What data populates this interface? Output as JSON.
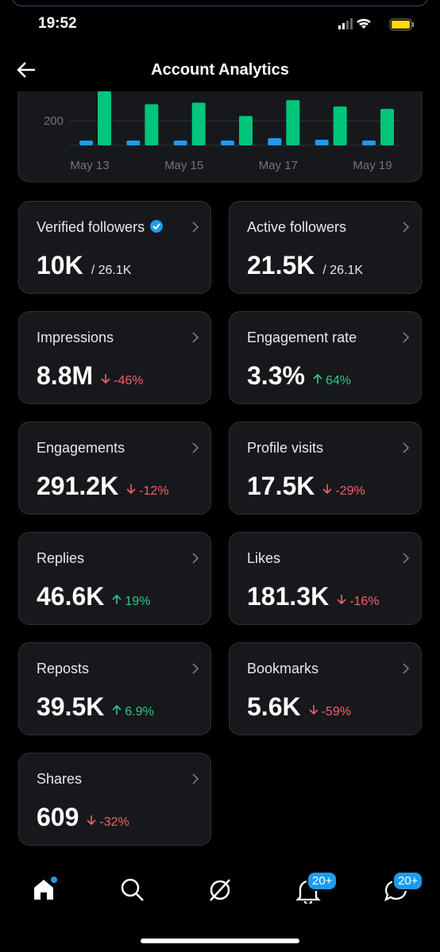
{
  "status_bar": {
    "time": "19:52"
  },
  "header": {
    "title": "Account Analytics"
  },
  "chart_data": {
    "type": "bar",
    "categories": [
      "May 13",
      null,
      "May 15",
      null,
      "May 17",
      null,
      "May 19"
    ],
    "series": [
      {
        "color": "#1d9bf0",
        "values": [
          39,
          39,
          39,
          39,
          58,
          45,
          39
        ]
      },
      {
        "color": "#00c57a",
        "values": [
          440,
          335,
          348,
          239,
          368,
          316,
          297
        ]
      }
    ],
    "ylim": [
      0,
      440
    ],
    "yticks": [
      200
    ],
    "grid": true
  },
  "metrics": [
    {
      "label": "Verified followers",
      "value": "10K",
      "total": "/ 26.1K",
      "verified": true
    },
    {
      "label": "Active followers",
      "value": "21.5K",
      "total": "/ 26.1K"
    },
    {
      "label": "Impressions",
      "value": "8.8M",
      "change": "-46%",
      "trend": "down"
    },
    {
      "label": "Engagement rate",
      "value": "3.3%",
      "change": "64%",
      "trend": "up"
    },
    {
      "label": "Engagements",
      "value": "291.2K",
      "change": "-12%",
      "trend": "down"
    },
    {
      "label": "Profile visits",
      "value": "17.5K",
      "change": "-29%",
      "trend": "down"
    },
    {
      "label": "Replies",
      "value": "46.6K",
      "change": "19%",
      "trend": "up"
    },
    {
      "label": "Likes",
      "value": "181.3K",
      "change": "-16%",
      "trend": "down"
    },
    {
      "label": "Reposts",
      "value": "39.5K",
      "change": "6.9%",
      "trend": "up"
    },
    {
      "label": "Bookmarks",
      "value": "5.6K",
      "change": "-59%",
      "trend": "down"
    },
    {
      "label": "Shares",
      "value": "609",
      "change": "-32%",
      "trend": "down"
    }
  ],
  "nav": {
    "badges": [
      "20+",
      "20+"
    ]
  }
}
